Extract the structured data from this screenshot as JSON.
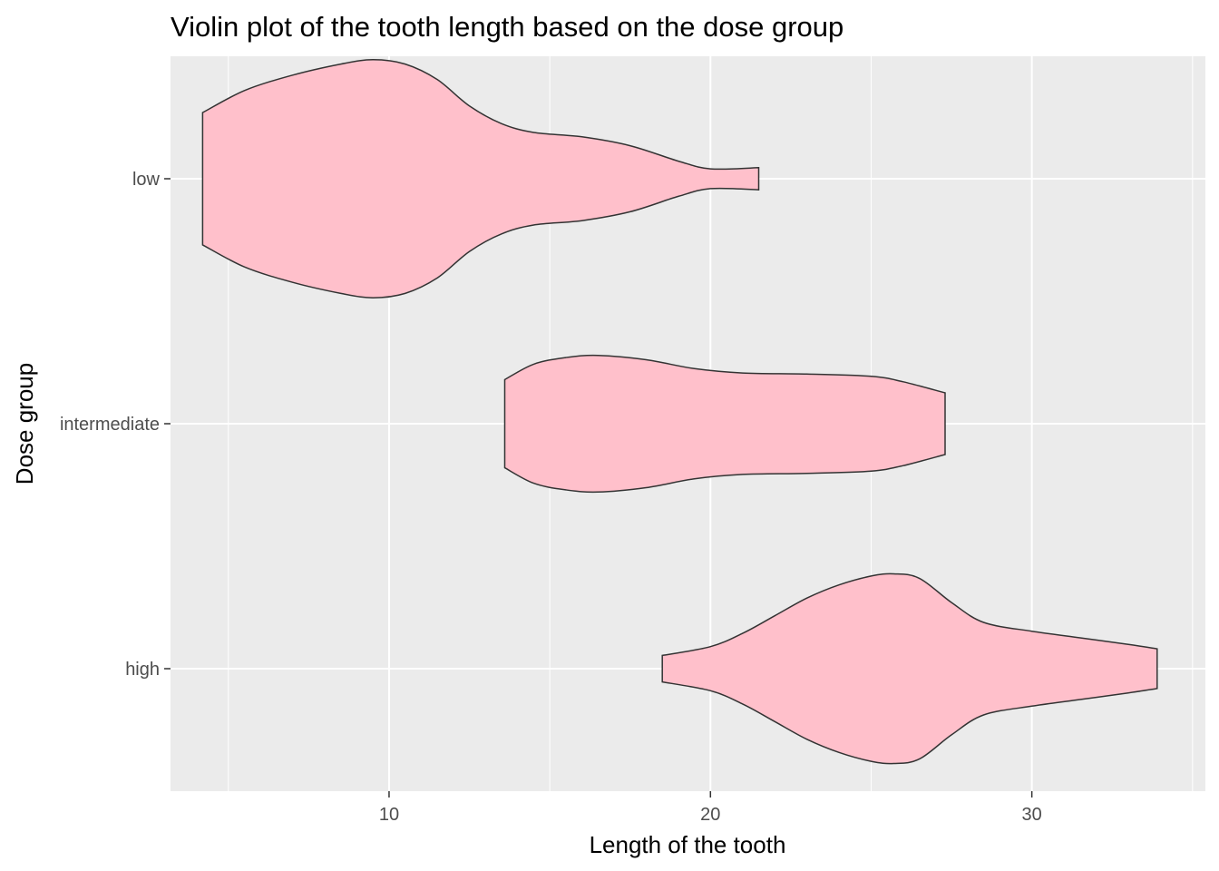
{
  "chart_data": {
    "type": "violin",
    "orientation": "horizontal",
    "title": "Violin plot of the tooth length based on the dose group",
    "xlabel": "Length of the tooth",
    "ylabel": "Dose group",
    "xlim": [
      3.2,
      35.4
    ],
    "x_ticks": [
      10,
      20,
      30
    ],
    "x_tick_labels": [
      "10",
      "20",
      "30"
    ],
    "categories": [
      "low",
      "intermediate",
      "high"
    ],
    "fill_color": "#ffc0cb",
    "outline_color": "#333333",
    "panel_background": "#ebebeb",
    "grid": true,
    "series": [
      {
        "category": "low",
        "range": [
          4.2,
          21.5
        ],
        "density": [
          [
            4.2,
            0.3
          ],
          [
            5.5,
            0.4
          ],
          [
            7.0,
            0.47
          ],
          [
            8.5,
            0.52
          ],
          [
            9.5,
            0.54
          ],
          [
            10.5,
            0.52
          ],
          [
            11.5,
            0.45
          ],
          [
            12.5,
            0.33
          ],
          [
            13.5,
            0.25
          ],
          [
            14.5,
            0.21
          ],
          [
            16.0,
            0.19
          ],
          [
            17.5,
            0.15
          ],
          [
            19.0,
            0.08
          ],
          [
            20.0,
            0.045
          ],
          [
            21.5,
            0.05
          ]
        ]
      },
      {
        "category": "intermediate",
        "range": [
          13.6,
          27.3
        ],
        "density": [
          [
            13.6,
            0.2
          ],
          [
            14.5,
            0.27
          ],
          [
            15.5,
            0.3
          ],
          [
            16.5,
            0.31
          ],
          [
            18.0,
            0.29
          ],
          [
            19.5,
            0.25
          ],
          [
            21.0,
            0.23
          ],
          [
            23.0,
            0.225
          ],
          [
            25.0,
            0.215
          ],
          [
            26.0,
            0.19
          ],
          [
            27.3,
            0.14
          ]
        ]
      },
      {
        "category": "high",
        "range": [
          18.5,
          33.9
        ],
        "density": [
          [
            18.5,
            0.06
          ],
          [
            20.0,
            0.1
          ],
          [
            21.0,
            0.16
          ],
          [
            22.0,
            0.24
          ],
          [
            23.0,
            0.32
          ],
          [
            24.0,
            0.38
          ],
          [
            25.0,
            0.42
          ],
          [
            25.7,
            0.43
          ],
          [
            26.5,
            0.41
          ],
          [
            27.5,
            0.3
          ],
          [
            28.5,
            0.21
          ],
          [
            30.0,
            0.17
          ],
          [
            31.5,
            0.14
          ],
          [
            33.0,
            0.11
          ],
          [
            33.9,
            0.09
          ]
        ]
      }
    ]
  }
}
